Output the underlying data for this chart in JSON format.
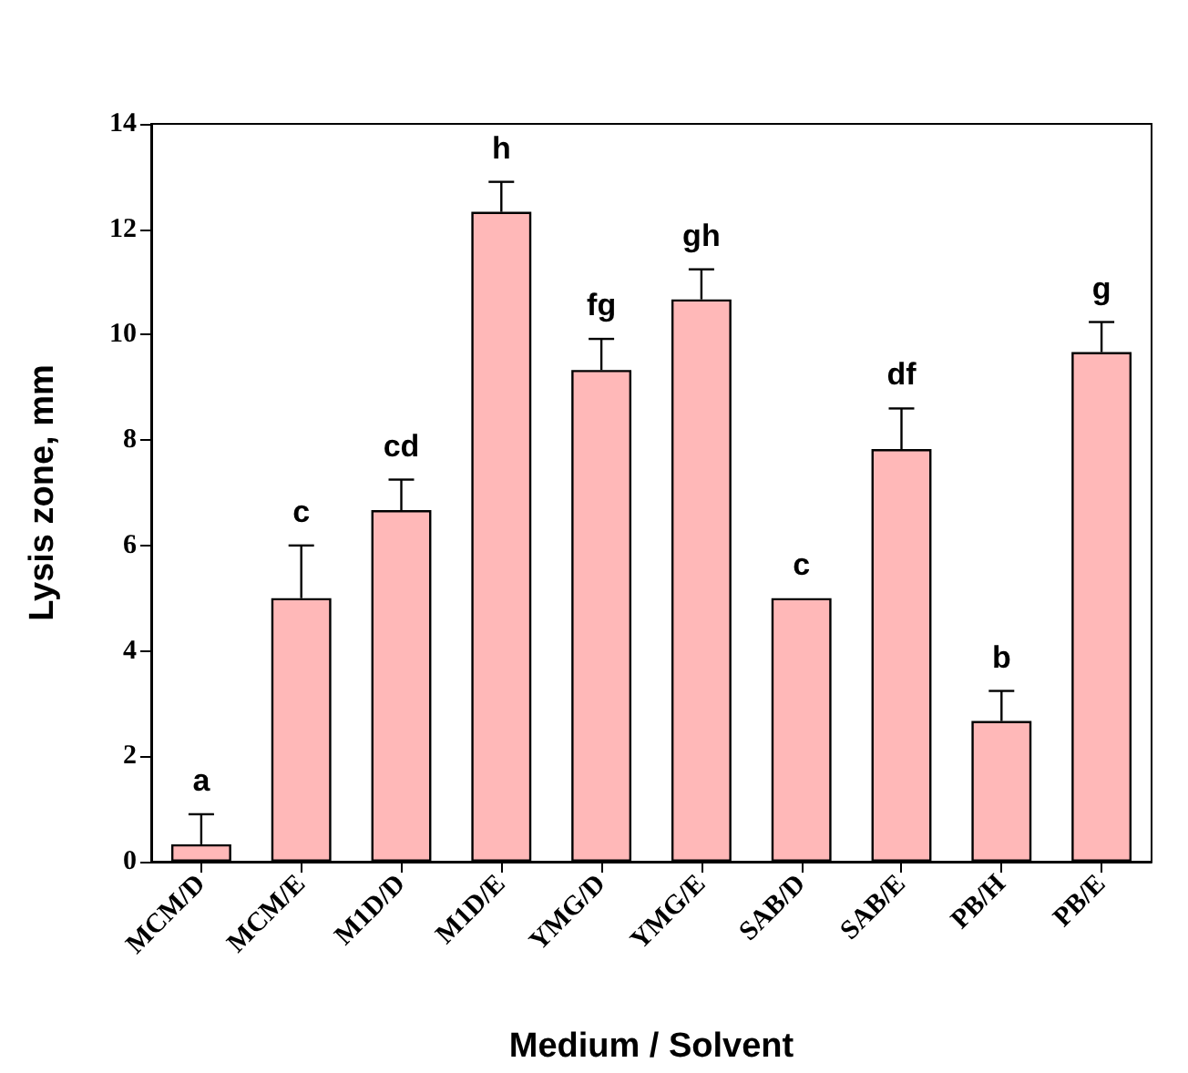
{
  "chart_data": {
    "type": "bar",
    "xlabel": "Medium / Solvent",
    "ylabel": "Lysis zone, mm",
    "categories": [
      "MCM/D",
      "MCM/E",
      "M1D/D",
      "M1D/E",
      "YMG/D",
      "YMG/E",
      "SAB/D",
      "SAB/E",
      "PB/H",
      "PB/E"
    ],
    "values": [
      0.33,
      5.0,
      6.67,
      12.33,
      9.33,
      10.67,
      5.0,
      7.83,
      2.67,
      9.67
    ],
    "errors": [
      [
        0.33,
        0.9
      ],
      [
        5.0,
        6.0
      ],
      [
        6.67,
        7.25
      ],
      [
        12.33,
        12.9
      ],
      [
        9.33,
        9.92
      ],
      [
        10.67,
        11.24
      ],
      null,
      [
        7.83,
        8.6
      ],
      [
        2.67,
        3.24
      ],
      [
        9.67,
        10.24
      ]
    ],
    "color": "#ffb8b8",
    "ylim": [
      0,
      14
    ],
    "yticks": [
      0,
      2,
      4,
      6,
      8,
      10,
      12,
      14
    ],
    "grid": false,
    "annotations": [
      {
        "text": "a",
        "x": "MCM/D",
        "y": 0.9
      },
      {
        "text": "c",
        "x": "MCM/E",
        "y": 6.0
      },
      {
        "text": "cd",
        "x": "M1D/D",
        "y": 7.25
      },
      {
        "text": "h",
        "x": "M1D/E",
        "y": 12.9
      },
      {
        "text": "fg",
        "x": "YMG/D",
        "y": 9.92
      },
      {
        "text": "gh",
        "x": "YMG/E",
        "y": 11.24
      },
      {
        "text": "c",
        "x": "SAB/D",
        "y": 5.0
      },
      {
        "text": "df",
        "x": "SAB/E",
        "y": 8.6
      },
      {
        "text": "b",
        "x": "PB/H",
        "y": 3.24
      },
      {
        "text": "g",
        "x": "PB/E",
        "y": 10.24
      }
    ]
  }
}
